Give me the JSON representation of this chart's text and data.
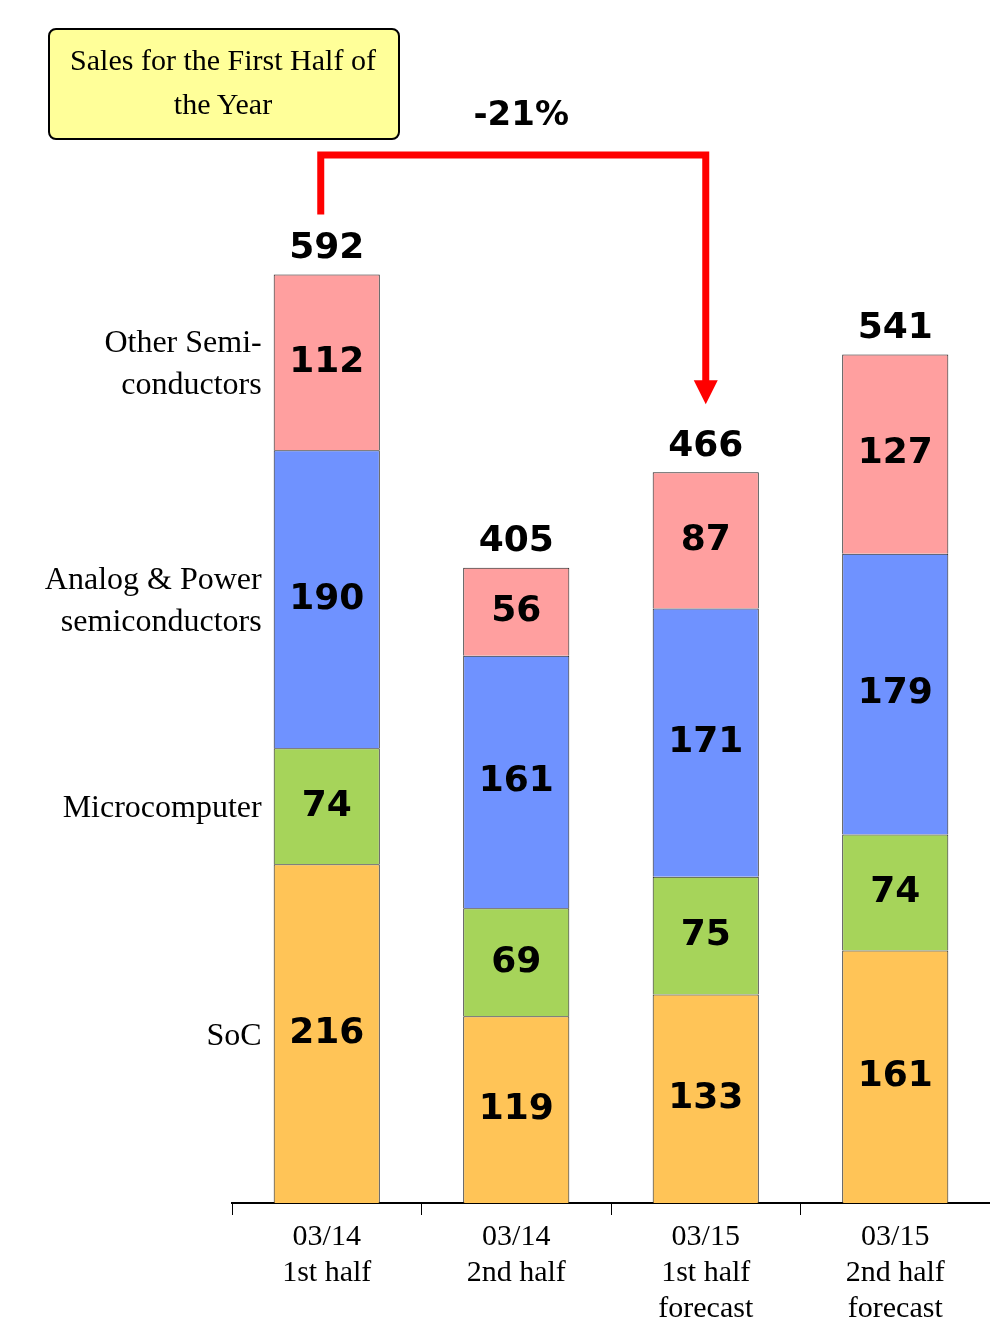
{
  "chart_data": {
    "type": "bar",
    "title": "Sales for the First Half of the Year",
    "stacked": true,
    "data_labels": true,
    "legend": false,
    "grid": false,
    "categories": [
      "03/14\n1st half",
      "03/14\n2nd half",
      "03/15\n1st half\nforecast",
      "03/15\n2nd half\nforecast"
    ],
    "series": [
      {
        "name": "SoC",
        "color": "#ffc457",
        "values": [
          216,
          119,
          133,
          161
        ]
      },
      {
        "name": "Microcomputer",
        "color": "#a6d45a",
        "values": [
          74,
          69,
          75,
          74
        ]
      },
      {
        "name": "Analog & Power semiconductors",
        "color": "#6f92ff",
        "values": [
          190,
          161,
          171,
          179
        ]
      },
      {
        "name": "Other Semi-conductors",
        "color": "#ff9f9f",
        "values": [
          112,
          56,
          87,
          127
        ]
      }
    ],
    "totals": [
      "592",
      "405",
      "466",
      "541"
    ],
    "annotations": [
      "-21%"
    ]
  }
}
